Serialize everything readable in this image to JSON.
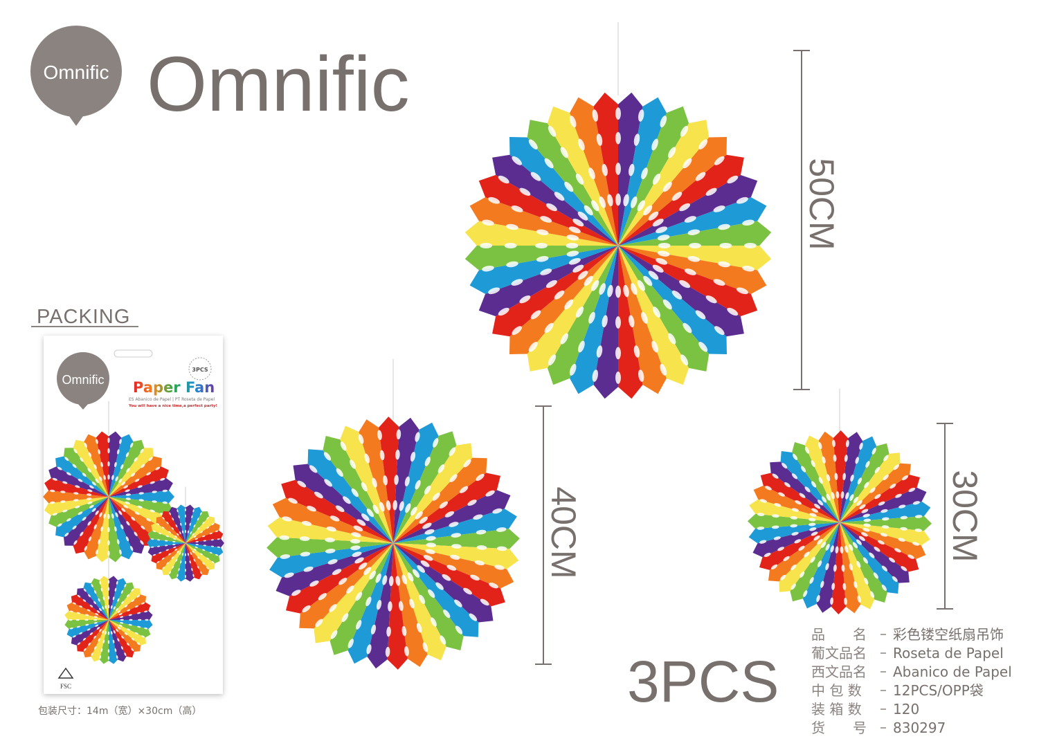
{
  "logo": {
    "badge": "Omnific",
    "name": "Omnific"
  },
  "packing": {
    "title": "PACKING",
    "package": {
      "brand": "Omnific",
      "count": "3PCS",
      "product": "Paper Fan",
      "subtitle": "ES Abanico de Papel | PT Roseta de Papel",
      "slogan": "You will have a nice time,a perfect party!",
      "cert": "FSC"
    },
    "size_note": "包装尺寸：14m（宽）×30cm（高）"
  },
  "dimensions": [
    "50CM",
    "40CM",
    "30CM"
  ],
  "quantity": "3PCS",
  "specs": [
    {
      "label": "品　　名",
      "value": "彩色镂空纸扇吊饰"
    },
    {
      "label": "葡文品名",
      "value": "Roseta de Papel"
    },
    {
      "label": "西文品名",
      "value": "Abanico de Papel"
    },
    {
      "label": "中 包 数",
      "value": "12PCS/OPP袋"
    },
    {
      "label": "装 箱 数",
      "value": "120"
    },
    {
      "label": "货　　号",
      "value": "830297"
    }
  ]
}
